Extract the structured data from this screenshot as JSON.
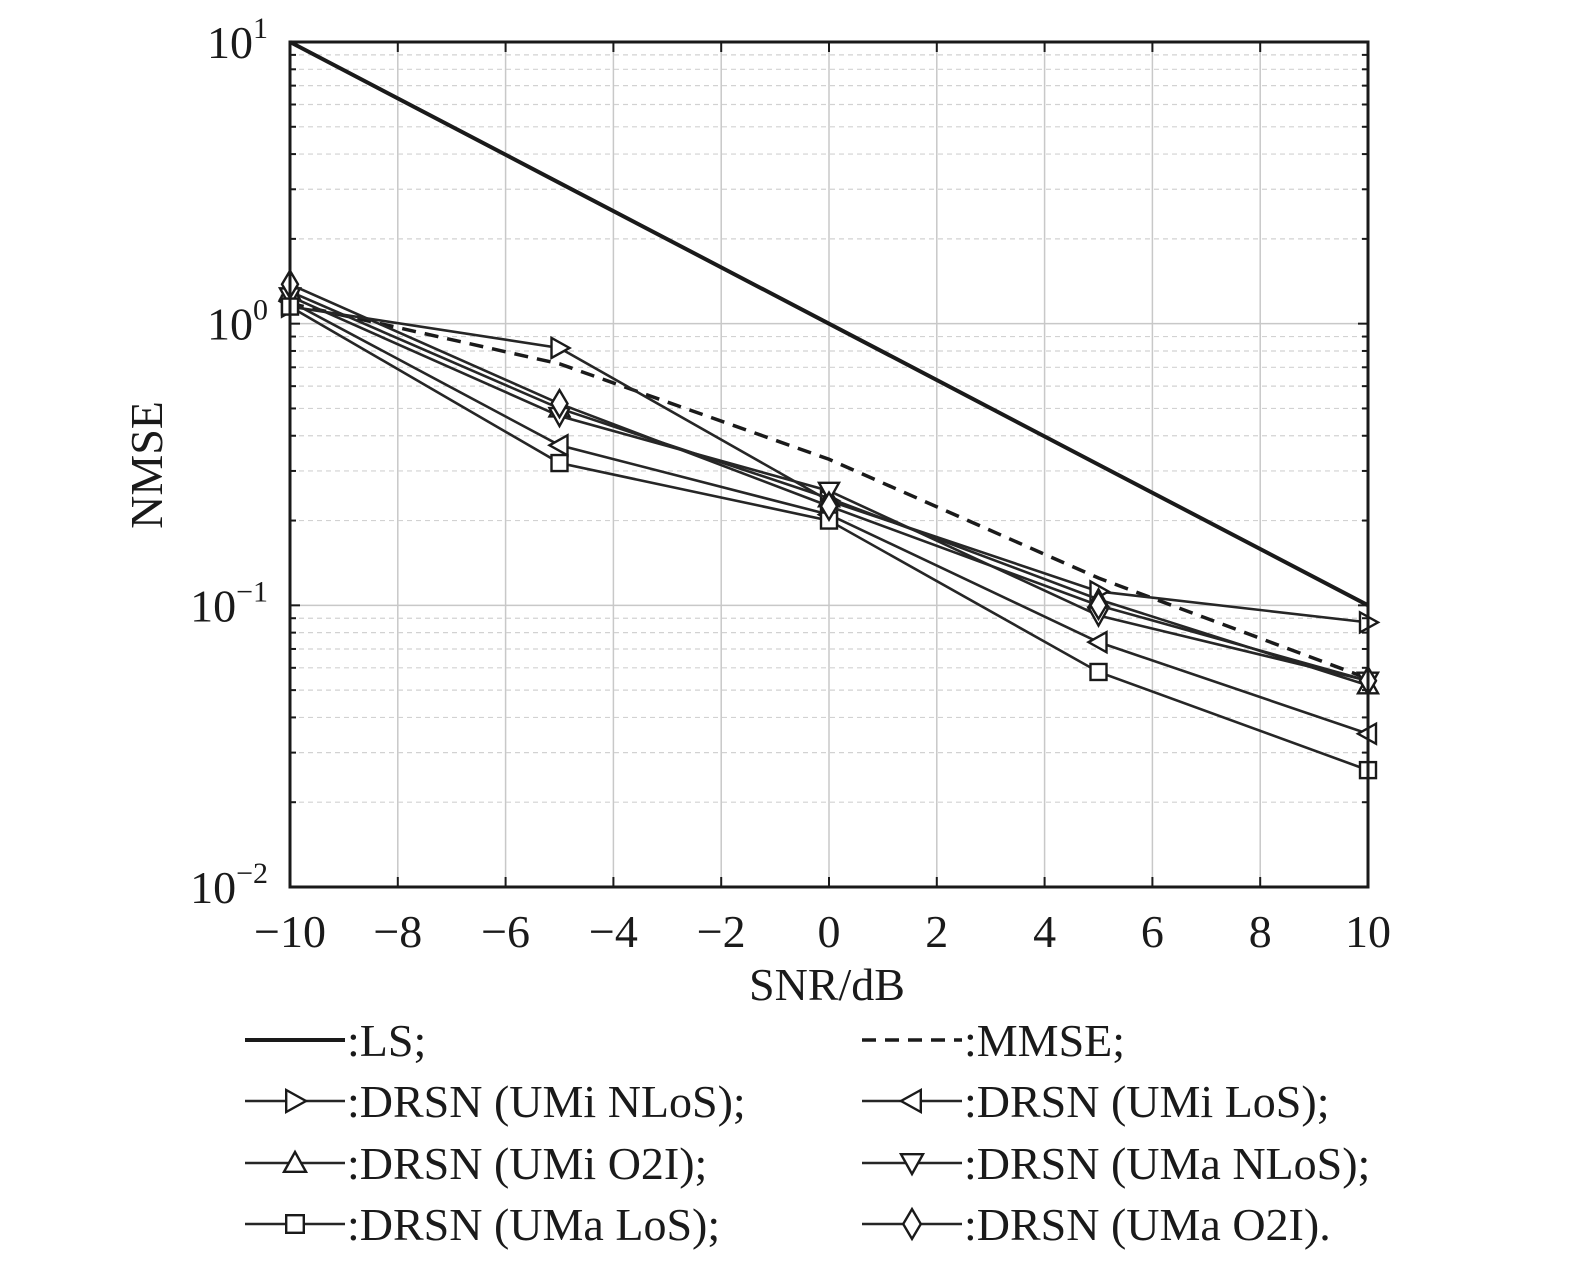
{
  "chart_data": {
    "type": "line",
    "xlabel": "SNR/dB",
    "ylabel": "NMSE",
    "xlim": [
      -10,
      10
    ],
    "ylim": [
      0.01,
      10
    ],
    "yscale": "log",
    "grid": true,
    "legend_position": "bottom",
    "x": [
      -10,
      -5,
      0,
      5,
      10
    ],
    "xticks": [
      "−10",
      "−8",
      "−6",
      "−4",
      "−2",
      "0",
      "2",
      "4",
      "6",
      "8",
      "10"
    ],
    "ytick_bases": [
      "10",
      "10",
      "10",
      "10"
    ],
    "ytick_exponents": [
      "−2",
      "−1",
      "0",
      "1"
    ],
    "series": [
      {
        "name": ":LS;",
        "style": "solid-thick",
        "marker": "none",
        "values": [
          10,
          3.16,
          1.0,
          0.316,
          0.1
        ]
      },
      {
        "name": ":MMSE;",
        "style": "dashed",
        "marker": "none",
        "values": [
          1.18,
          0.72,
          0.33,
          0.125,
          0.055
        ]
      },
      {
        "name": ":DRSN (UMi NLoS);",
        "style": "solid",
        "marker": "triangle-right",
        "values": [
          1.15,
          0.82,
          0.235,
          0.112,
          0.087
        ]
      },
      {
        "name": ":DRSN (UMi LoS);",
        "style": "solid",
        "marker": "triangle-left",
        "values": [
          1.2,
          0.37,
          0.21,
          0.074,
          0.035
        ]
      },
      {
        "name": ":DRSN (UMi O2I);",
        "style": "solid",
        "marker": "triangle-up",
        "values": [
          1.3,
          0.5,
          0.24,
          0.105,
          0.052
        ]
      },
      {
        "name": ":DRSN (UMa NLoS);",
        "style": "solid",
        "marker": "triangle-down",
        "values": [
          1.25,
          0.47,
          0.255,
          0.092,
          0.054
        ]
      },
      {
        "name": ":DRSN (UMa LoS);",
        "style": "solid",
        "marker": "square",
        "values": [
          1.15,
          0.32,
          0.2,
          0.058,
          0.026
        ]
      },
      {
        "name": ":DRSN (UMa O2I).",
        "style": "solid",
        "marker": "diamond",
        "values": [
          1.38,
          0.52,
          0.225,
          0.1,
          0.054
        ]
      }
    ]
  }
}
